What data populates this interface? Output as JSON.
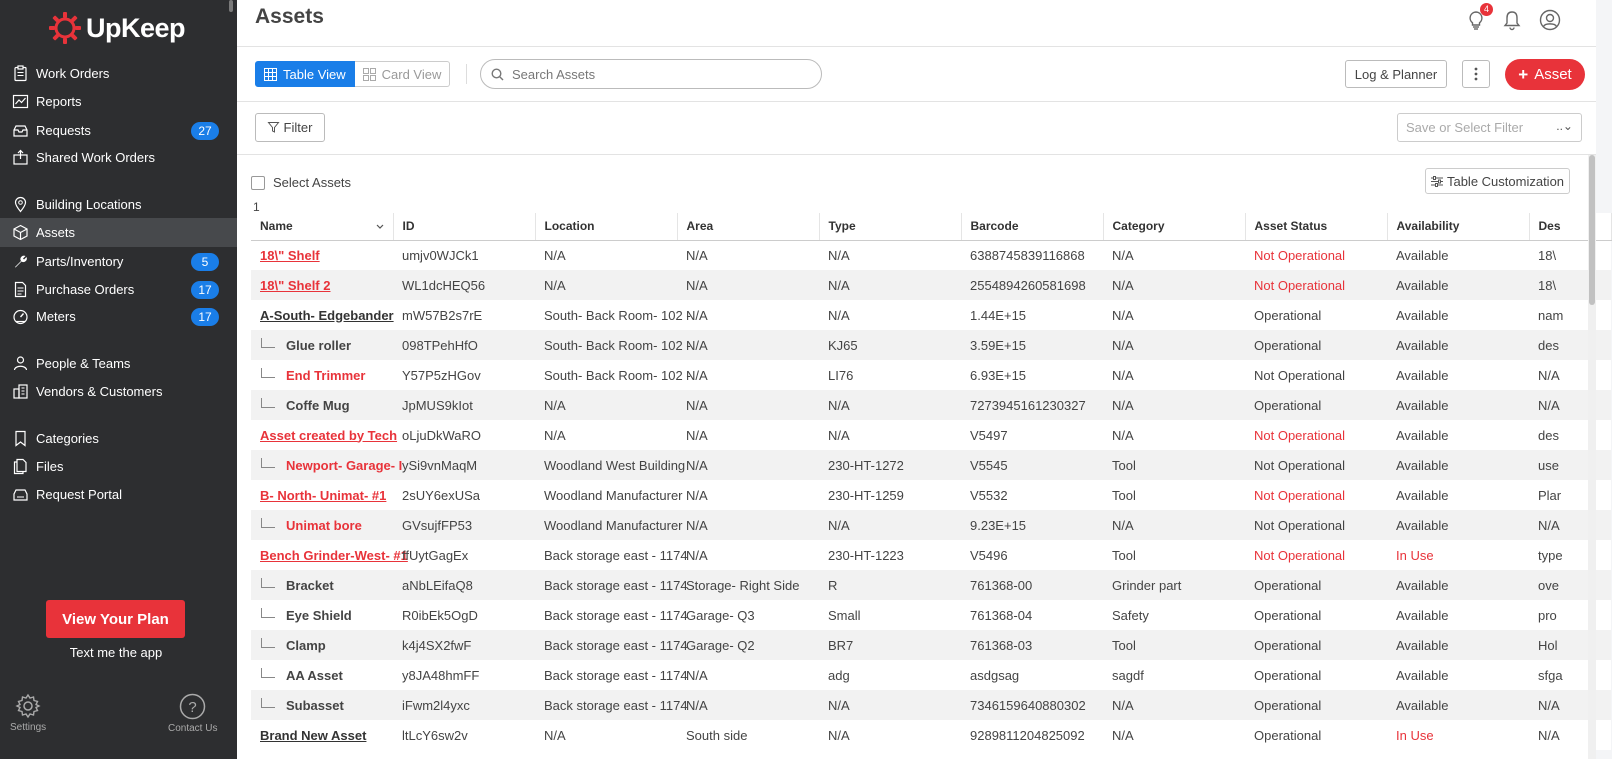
{
  "sidebar": {
    "logo_text": "UpKeep",
    "nav": [
      {
        "label": "Work Orders",
        "icon": "clipboard-icon",
        "badge": "",
        "name": "sidebar-item-work-orders"
      },
      {
        "label": "Reports",
        "icon": "chart-icon",
        "badge": "",
        "name": "sidebar-item-reports"
      },
      {
        "label": "Requests",
        "icon": "inbox-icon",
        "badge": "27",
        "name": "sidebar-item-requests"
      },
      {
        "label": "Shared Work Orders",
        "icon": "share-icon",
        "badge": "",
        "name": "sidebar-item-shared-work-orders"
      },
      {
        "label": "Building Locations",
        "icon": "map-pin-icon",
        "badge": "",
        "name": "sidebar-item-building-locations"
      },
      {
        "label": "Assets",
        "icon": "cube-icon",
        "badge": "",
        "name": "sidebar-item-assets"
      },
      {
        "label": "Parts/Inventory",
        "icon": "wrench-icon",
        "badge": "5",
        "name": "sidebar-item-parts-inventory"
      },
      {
        "label": "Purchase Orders",
        "icon": "document-icon",
        "badge": "17",
        "name": "sidebar-item-purchase-orders"
      },
      {
        "label": "Meters",
        "icon": "gauge-icon",
        "badge": "17",
        "name": "sidebar-item-meters"
      },
      {
        "label": "People & Teams",
        "icon": "people-icon",
        "badge": "",
        "name": "sidebar-item-people-teams"
      },
      {
        "label": "Vendors & Customers",
        "icon": "building-icon",
        "badge": "",
        "name": "sidebar-item-vendors-customers"
      },
      {
        "label": "Categories",
        "icon": "bookmark-icon",
        "badge": "",
        "name": "sidebar-item-categories"
      },
      {
        "label": "Files",
        "icon": "files-icon",
        "badge": "",
        "name": "sidebar-item-files"
      },
      {
        "label": "Request Portal",
        "icon": "portal-icon",
        "badge": "",
        "name": "sidebar-item-request-portal"
      }
    ],
    "active": "Assets",
    "plan_button": "View Your Plan",
    "text_app": "Text me the app",
    "settings_label": "Settings",
    "contact_label": "Contact Us"
  },
  "header": {
    "title": "Assets",
    "notification_count": "4"
  },
  "toolbar": {
    "table_view": "Table View",
    "card_view": "Card View",
    "search_placeholder": "Search Assets",
    "log_planner": "Log & Planner",
    "add_asset": "Asset"
  },
  "filterbar": {
    "filter_label": "Filter",
    "saved_filter_placeholder": "Save or Select Filter"
  },
  "table": {
    "select_label": "Select Assets",
    "table_customization": "Table Customization",
    "row_count": "1",
    "columns": [
      "Name",
      "ID",
      "Location",
      "Area",
      "Type",
      "Barcode",
      "Category",
      "Asset Status",
      "Availability",
      "Des"
    ],
    "rows": [
      {
        "name": "18\\\" Shelf",
        "child": false,
        "name_red": true,
        "id": "umjv0WJCk1",
        "location": "N/A",
        "area": "N/A",
        "type": "N/A",
        "barcode": "6388745839116868",
        "category": "N/A",
        "status": "Not Operational",
        "status_red": true,
        "availability": "Available",
        "avail_red": false,
        "desc": "18\\"
      },
      {
        "name": "18\\\" Shelf 2",
        "child": false,
        "name_red": true,
        "id": "WL1dcHEQ56",
        "location": "N/A",
        "area": "N/A",
        "type": "N/A",
        "barcode": "2554894260581698",
        "category": "N/A",
        "status": "Not Operational",
        "status_red": true,
        "availability": "Available",
        "avail_red": false,
        "desc": "18\\"
      },
      {
        "name": "A-South- Edgebander",
        "child": false,
        "name_red": false,
        "id": "mW57B2s7rE",
        "location": "South- Back Room- 102 -",
        "area": "N/A",
        "type": "N/A",
        "barcode": "1.44E+15",
        "category": "N/A",
        "status": "Operational",
        "status_red": false,
        "availability": "Available",
        "avail_red": false,
        "desc": "nam"
      },
      {
        "name": "Glue roller",
        "child": true,
        "name_red": false,
        "id": "098TPehHfO",
        "location": "South- Back Room- 102 -",
        "area": "N/A",
        "type": "KJ65",
        "barcode": "3.59E+15",
        "category": "N/A",
        "status": "Operational",
        "status_red": false,
        "availability": "Available",
        "avail_red": false,
        "desc": "des"
      },
      {
        "name": "End Trimmer",
        "child": true,
        "name_red": true,
        "id": "Y57P5zHGov",
        "location": "South- Back Room- 102 -",
        "area": "N/A",
        "type": "LI76",
        "barcode": "6.93E+15",
        "category": "N/A",
        "status": "Not Operational",
        "status_red": false,
        "availability": "Available",
        "avail_red": false,
        "desc": "N/A"
      },
      {
        "name": "Coffe Mug",
        "child": true,
        "name_red": false,
        "id": "JpMUS9kIot",
        "location": "N/A",
        "area": "N/A",
        "type": "N/A",
        "barcode": "7273945161230327",
        "category": "N/A",
        "status": "Operational",
        "status_red": false,
        "availability": "Available",
        "avail_red": false,
        "desc": "N/A"
      },
      {
        "name": "Asset created by Tech",
        "child": false,
        "name_red": true,
        "id": "oLjuDkWaRO",
        "location": "N/A",
        "area": "N/A",
        "type": "N/A",
        "barcode": "V5497",
        "category": "N/A",
        "status": "Not Operational",
        "status_red": true,
        "availability": "Available",
        "avail_red": false,
        "desc": "des"
      },
      {
        "name": "Newport- Garage- I",
        "child": true,
        "name_red": true,
        "id": "ySi9vnMaqM",
        "location": "Woodland West Building",
        "area": "N/A",
        "type": "230-HT-1272",
        "barcode": "V5545",
        "category": "Tool",
        "status": "Not Operational",
        "status_red": false,
        "availability": "Available",
        "avail_red": false,
        "desc": "use"
      },
      {
        "name": "B- North- Unimat- #1",
        "child": false,
        "name_red": true,
        "id": "2sUY6exUSa",
        "location": "Woodland Manufacturer",
        "area": "N/A",
        "type": "230-HT-1259",
        "barcode": "V5532",
        "category": "Tool",
        "status": "Not Operational",
        "status_red": true,
        "availability": "Available",
        "avail_red": false,
        "desc": "Plar"
      },
      {
        "name": "Unimat bore",
        "child": true,
        "name_red": true,
        "id": "GVsujfFP53",
        "location": "Woodland Manufacturer",
        "area": "N/A",
        "type": "N/A",
        "barcode": "9.23E+15",
        "category": "N/A",
        "status": "Not Operational",
        "status_red": false,
        "availability": "Available",
        "avail_red": false,
        "desc": "N/A"
      },
      {
        "name": "Bench Grinder-West- #1",
        "child": false,
        "name_red": true,
        "id": "ffUytGagEx",
        "location": "Back storage east - 1174",
        "area": "N/A",
        "type": "230-HT-1223",
        "barcode": "V5496",
        "category": "Tool",
        "status": "Not Operational",
        "status_red": true,
        "availability": "In Use",
        "avail_red": true,
        "desc": "type"
      },
      {
        "name": "Bracket",
        "child": true,
        "name_red": false,
        "id": "aNbLEifaQ8",
        "location": "Back storage east - 1174",
        "area": "Storage- Right Side",
        "type": "R",
        "barcode": "761368-00",
        "category": "Grinder part",
        "status": "Operational",
        "status_red": false,
        "availability": "Available",
        "avail_red": false,
        "desc": "ove"
      },
      {
        "name": "Eye Shield",
        "child": true,
        "name_red": false,
        "id": "R0ibEk5OgD",
        "location": "Back storage east - 1174",
        "area": "Garage- Q3",
        "type": "Small",
        "barcode": "761368-04",
        "category": "Safety",
        "status": "Operational",
        "status_red": false,
        "availability": "Available",
        "avail_red": false,
        "desc": "pro"
      },
      {
        "name": "Clamp",
        "child": true,
        "name_red": false,
        "id": "k4j4SX2fwF",
        "location": "Back storage east - 1174",
        "area": "Garage- Q2",
        "type": "BR7",
        "barcode": "761368-03",
        "category": "Tool",
        "status": "Operational",
        "status_red": false,
        "availability": "Available",
        "avail_red": false,
        "desc": "Hol"
      },
      {
        "name": "AA Asset",
        "child": true,
        "name_red": false,
        "id": "y8JA48hmFF",
        "location": "Back storage east - 1174",
        "area": "N/A",
        "type": "adg",
        "barcode": "asdgsag",
        "category": "sagdf",
        "status": "Operational",
        "status_red": false,
        "availability": "Available",
        "avail_red": false,
        "desc": "sfga"
      },
      {
        "name": "Subasset",
        "child": true,
        "name_red": false,
        "id": "iFwm2l4yxc",
        "location": "Back storage east - 1174",
        "area": "N/A",
        "type": "N/A",
        "barcode": "7346159640880302",
        "category": "N/A",
        "status": "Operational",
        "status_red": false,
        "availability": "Available",
        "avail_red": false,
        "desc": "N/A"
      },
      {
        "name": "Brand New Asset",
        "child": false,
        "name_red": false,
        "id": "ltLcY6sw2v",
        "location": "N/A",
        "area": "South side",
        "type": "N/A",
        "barcode": "9289811204825092",
        "category": "N/A",
        "status": "Operational",
        "status_red": false,
        "availability": "In Use",
        "avail_red": true,
        "desc": "N/A"
      }
    ]
  },
  "colors": {
    "accent_blue": "#1a7ee8",
    "brand_red": "#e8333a",
    "sidebar_bg": "#2d2e30"
  }
}
